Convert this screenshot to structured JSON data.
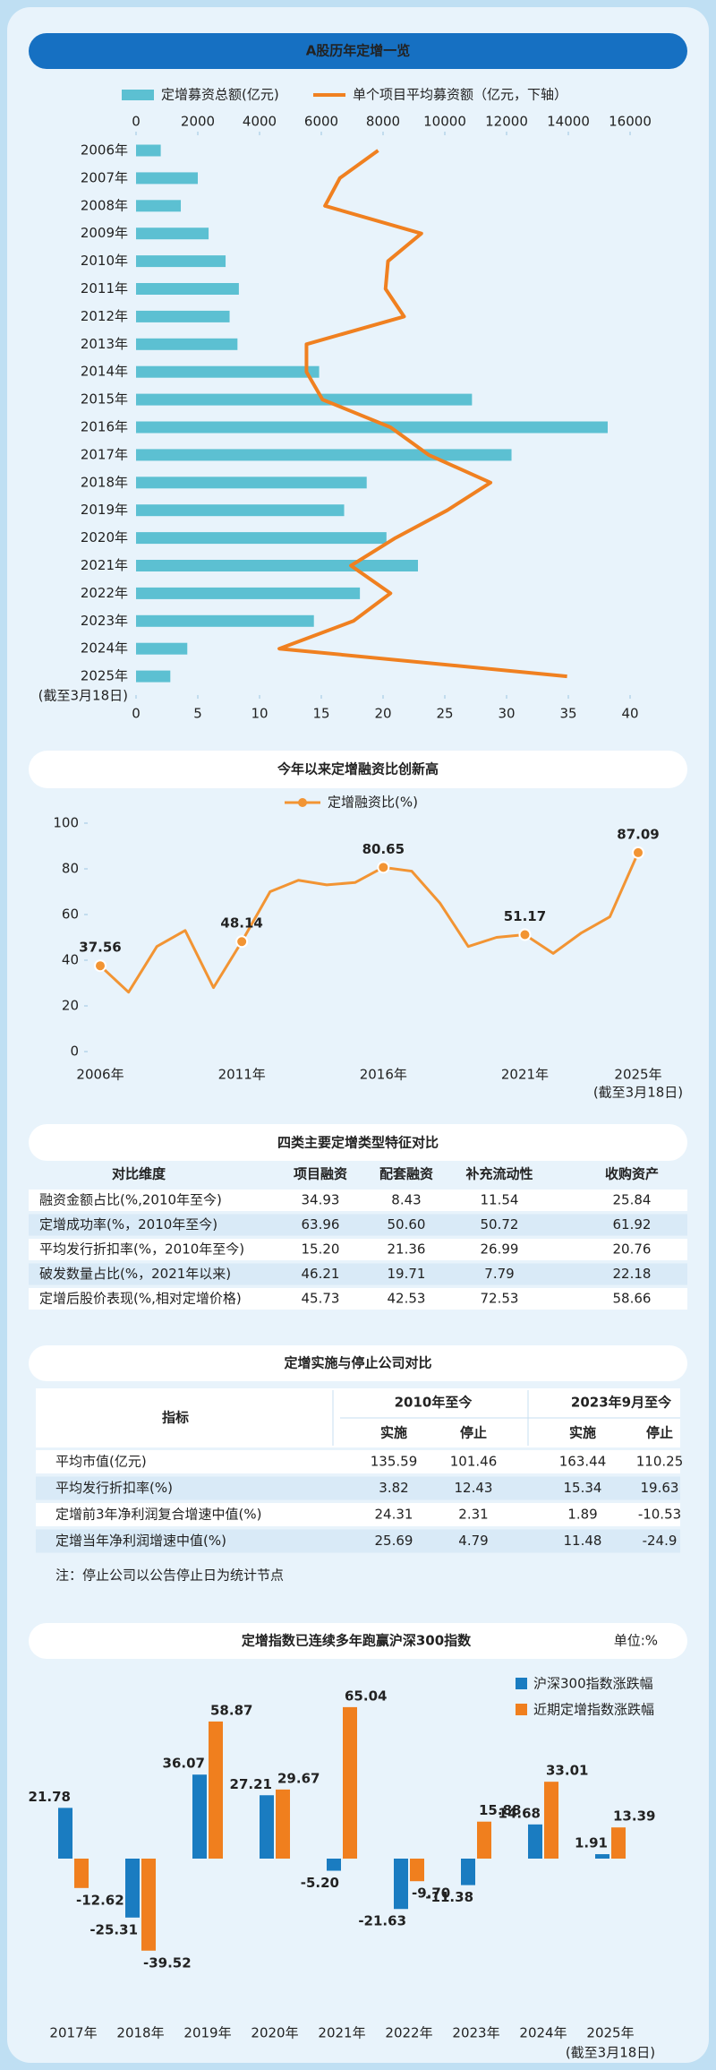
{
  "chart_data": [
    {
      "type": "bar-line",
      "title": "A股历年定增一览",
      "categories": [
        "2006年",
        "2007年",
        "2008年",
        "2009年",
        "2010年",
        "2011年",
        "2012年",
        "2013年",
        "2014年",
        "2015年",
        "2016年",
        "2017年",
        "2018年",
        "2019年",
        "2020年",
        "2021年",
        "2022年",
        "2023年",
        "2024年",
        "2025年"
      ],
      "category_note": "(截至3月18日)",
      "series": [
        {
          "name": "定增募资总额(亿元)",
          "type": "bar",
          "axis": "x",
          "color": "#5cc0d2",
          "values": [
            800,
            2000,
            1450,
            2350,
            2900,
            3330,
            3030,
            3285,
            5930,
            10880,
            15275,
            12160,
            7470,
            6740,
            8110,
            9130,
            7250,
            5760,
            1660,
            1110
          ]
        },
        {
          "name": "单个项目平均募资额（亿元，下轴）",
          "type": "line",
          "axis": "x2",
          "color": "#f08020",
          "values": [
            19.6,
            16.5,
            15.3,
            23.1,
            20.4,
            20.2,
            21.7,
            13.8,
            13.8,
            15.1,
            20.6,
            23.7,
            28.7,
            25.2,
            21.0,
            17.4,
            20.6,
            17.6,
            11.6,
            34.9
          ]
        }
      ],
      "xlim": [
        0,
        16000
      ],
      "xticks": [
        0,
        2000,
        4000,
        6000,
        8000,
        10000,
        12000,
        14000,
        16000
      ],
      "x2lim": [
        0,
        40
      ],
      "x2ticks": [
        0,
        5,
        10,
        15,
        20,
        25,
        30,
        35,
        40
      ]
    },
    {
      "type": "line",
      "title": "今年以来定增融资比创新高",
      "categories": [
        "2006年",
        null,
        null,
        null,
        null,
        "2011年",
        null,
        null,
        null,
        null,
        "2016年",
        null,
        null,
        null,
        null,
        "2021年",
        null,
        null,
        null,
        "2025年"
      ],
      "category_note": "(截至3月18日)",
      "series": [
        {
          "name": "定增融资比(%)",
          "color": "#f29433",
          "values": [
            37.56,
            26,
            46,
            53,
            28,
            48.14,
            70,
            75,
            73,
            74,
            80.65,
            79,
            65,
            46,
            50,
            51.17,
            43,
            52,
            59,
            87.09
          ],
          "value_labels": [
            "37.56",
            null,
            null,
            null,
            null,
            "48.14",
            null,
            null,
            null,
            null,
            "80.65",
            null,
            null,
            null,
            null,
            "51.17",
            null,
            null,
            null,
            "87.09"
          ]
        }
      ],
      "ylim": [
        0,
        100
      ],
      "yticks": [
        0,
        20,
        40,
        60,
        80,
        100
      ]
    },
    {
      "type": "grouped-bar",
      "title": "定增指数已连续多年跑赢沪深300指数",
      "unit": "单位:%",
      "categories": [
        "2017年",
        "2018年",
        "2019年",
        "2020年",
        "2021年",
        "2022年",
        "2023年",
        "2024年",
        "2025年"
      ],
      "category_note": "(截至3月18日)",
      "series": [
        {
          "name": "沪深300指数涨跌幅",
          "color": "#1a7cc1",
          "values": [
            21.78,
            -25.31,
            36.07,
            27.21,
            -5.2,
            -21.63,
            -11.38,
            14.68,
            1.91
          ],
          "value_labels": [
            "21.78",
            "-25.31",
            "36.07",
            "27.21",
            "-5.20",
            "-21.63",
            "-11.38",
            "14.68",
            "1.91"
          ]
        },
        {
          "name": "近期定增指数涨跌幅",
          "color": "#f07f1e",
          "values": [
            -12.62,
            -39.52,
            58.87,
            29.67,
            65.04,
            -9.7,
            15.88,
            33.01,
            13.39
          ],
          "value_labels": [
            "-12.62",
            "-39.52",
            "58.87",
            "29.67",
            "65.04",
            "-9.70",
            "15.88",
            "33.01",
            "13.39"
          ]
        }
      ]
    }
  ],
  "table_1": {
    "title": "四类主要定增类型特征对比",
    "header": [
      "对比维度",
      "项目融资",
      "配套融资",
      "补充流动性",
      "收购资产"
    ],
    "rows": [
      [
        "融资金额占比(%,2010年至今)",
        "34.93",
        "8.43",
        "11.54",
        "25.84"
      ],
      [
        "定增成功率(%，2010年至今)",
        "63.96",
        "50.60",
        "50.72",
        "61.92"
      ],
      [
        "平均发行折扣率(%，2010年至今)",
        "15.20",
        "21.36",
        "26.99",
        "20.76"
      ],
      [
        "破发数量占比(%，2021年以来)",
        "46.21",
        "19.71",
        "7.79",
        "22.18"
      ],
      [
        "定增后股价表现(%,相对定增价格)",
        "45.73",
        "42.53",
        "72.53",
        "58.66"
      ]
    ]
  },
  "table_2": {
    "title": "定增实施与停止公司对比",
    "header_label": "指标",
    "groups": [
      {
        "label": "2010年至今",
        "columns": [
          "实施",
          "停止"
        ]
      },
      {
        "label": "2023年9月至今",
        "columns": [
          "实施",
          "停止"
        ]
      }
    ],
    "rows": [
      [
        "平均市值(亿元)",
        "135.59",
        "101.46",
        "163.44",
        "110.25"
      ],
      [
        "平均发行折扣率(%)",
        "3.82",
        "12.43",
        "15.34",
        "19.63"
      ],
      [
        "定增前3年净利润复合增速中值(%)",
        "24.31",
        "2.31",
        "1.89",
        "-10.53"
      ],
      [
        "定增当年净利润增速中值(%)",
        "25.69",
        "4.79",
        "11.48",
        "-24.9"
      ]
    ],
    "note": "注：停止公司以公告停止日为统计节点"
  }
}
